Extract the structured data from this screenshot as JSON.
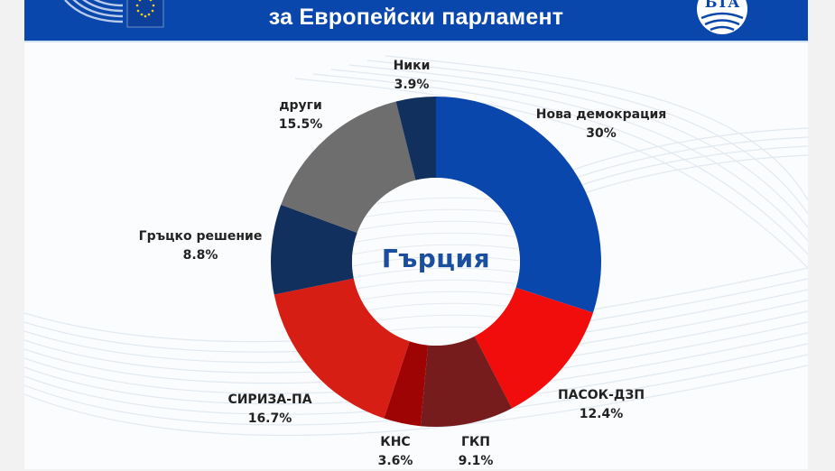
{
  "header": {
    "title_line": "за Европейски парламент",
    "left_logo": "european-parliament-logo",
    "eu_flag": "eu-flag-icon",
    "right_logo": "bta-logo",
    "right_logo_text": "БТА",
    "background_color": "#0a47ad"
  },
  "center_label": "Гърция",
  "labels": [
    {
      "name": "Нова демокрация",
      "value": "30%"
    },
    {
      "name": "ПАСОК-ДЗП",
      "value": "12.4%"
    },
    {
      "name": "ГКП",
      "value": "9.1%"
    },
    {
      "name": "КНС",
      "value": "3.6%"
    },
    {
      "name": "СИРИЗА-ПА",
      "value": "16.7%"
    },
    {
      "name": "Гръцко решение",
      "value": "8.8%"
    },
    {
      "name": "други",
      "value": "15.5%"
    },
    {
      "name": "Ники",
      "value": "3.9%"
    }
  ],
  "chart_data": {
    "type": "pie",
    "subtype": "donut",
    "title": "за Европейски парламент",
    "center_text": "Гърция",
    "categories": [
      "Нова демокрация",
      "ПАСОК-ДЗП",
      "ГКП",
      "КНС",
      "СИРИЗА-ПА",
      "Гръцко решение",
      "други",
      "Ники"
    ],
    "values": [
      30,
      12.4,
      9.1,
      3.6,
      16.7,
      8.8,
      15.5,
      3.9
    ],
    "unit": "%",
    "colors": [
      "#0a47ad",
      "#f20d0d",
      "#761c1c",
      "#9e0404",
      "#d61e14",
      "#12305e",
      "#6e6e6e",
      "#12305e"
    ],
    "start_angle": "12 o'clock",
    "direction": "clockwise",
    "legend": "none (direct labels)"
  }
}
